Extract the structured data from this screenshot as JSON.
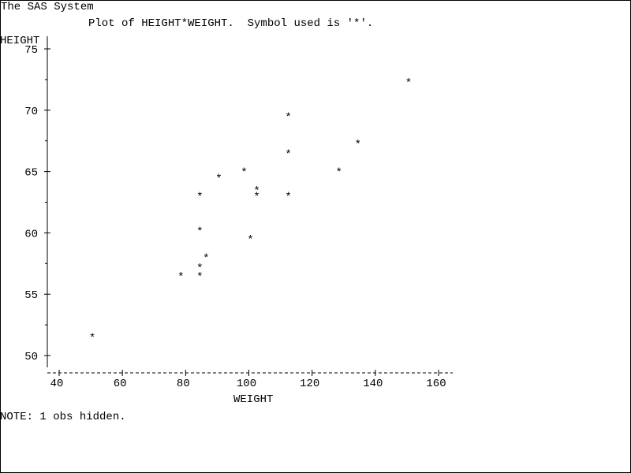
{
  "window": {
    "system_title": "The SAS System",
    "plot_title": "Plot of HEIGHT*WEIGHT.  Symbol used is '*'.",
    "note": "NOTE: 1 obs hidden."
  },
  "chart_data": {
    "type": "scatter",
    "title": "Plot of HEIGHT*WEIGHT.  Symbol used is '*'.",
    "xlabel": "WEIGHT",
    "ylabel": "HEIGHT",
    "symbol": "*",
    "xlim": [
      40,
      160
    ],
    "ylim": [
      50,
      75
    ],
    "xticks": [
      40,
      60,
      80,
      100,
      120,
      140,
      160
    ],
    "yticks": [
      50,
      55,
      60,
      65,
      70,
      75
    ],
    "grid": false,
    "x": [
      50.5,
      78.5,
      84.5,
      84.5,
      84.5,
      84.5,
      86.5,
      90.5,
      98.5,
      100.5,
      102.5,
      102.5,
      112.5,
      112.5,
      112.5,
      128.5,
      134.5,
      150.5
    ],
    "y": [
      51.5,
      56.5,
      56.5,
      57.2,
      60.2,
      63.0,
      58.0,
      64.5,
      65.0,
      59.5,
      63.5,
      63.0,
      69.5,
      66.5,
      63.0,
      65.0,
      67.3,
      72.3
    ]
  }
}
